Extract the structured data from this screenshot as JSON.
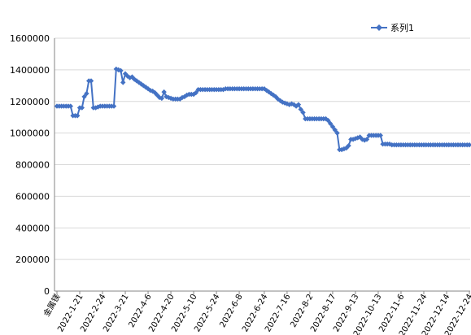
{
  "chart_data": {
    "type": "line",
    "title": "",
    "xlabel": "",
    "ylabel": "",
    "ylim": [
      0,
      1600000
    ],
    "yticks": [
      0,
      200000,
      400000,
      600000,
      800000,
      1000000,
      1200000,
      1400000,
      1600000
    ],
    "ytick_labels": [
      "0",
      "200000",
      "400000",
      "600000",
      "800000",
      "1000000",
      "1200000",
      "1400000",
      "1600000"
    ],
    "x_tick_labels": [
      "金属镁",
      "2022-1-21",
      "2022-2-24",
      "2022-3-21",
      "2022-4-6",
      "2022-4-20",
      "2022-5-10",
      "2022-5-24",
      "2022-6-8",
      "2022-6-24",
      "2022-7-16",
      "2022-8-2",
      "2022-8-17",
      "2022-9-13",
      "2022-10-13",
      "2022-11-6",
      "2022-11-24",
      "2022-12-14",
      "2022-12-24"
    ],
    "grid": "horizontal",
    "legend_position": "top-right",
    "series": [
      {
        "name": "系列1",
        "color": "#4472C4",
        "marker": "diamond",
        "values": [
          1170000,
          1170000,
          1170000,
          1170000,
          1170000,
          1170000,
          1170000,
          1110000,
          1110000,
          1110000,
          1160000,
          1160000,
          1230000,
          1250000,
          1330000,
          1330000,
          1160000,
          1160000,
          1165000,
          1170000,
          1170000,
          1170000,
          1170000,
          1170000,
          1170000,
          1170000,
          1405000,
          1400000,
          1395000,
          1320000,
          1375000,
          1360000,
          1350000,
          1355000,
          1340000,
          1330000,
          1320000,
          1310000,
          1300000,
          1290000,
          1280000,
          1270000,
          1265000,
          1255000,
          1240000,
          1225000,
          1220000,
          1260000,
          1230000,
          1225000,
          1220000,
          1215000,
          1215000,
          1215000,
          1215000,
          1225000,
          1230000,
          1240000,
          1245000,
          1245000,
          1245000,
          1255000,
          1275000,
          1275000,
          1275000,
          1275000,
          1275000,
          1275000,
          1275000,
          1275000,
          1275000,
          1275000,
          1275000,
          1275000,
          1280000,
          1280000,
          1280000,
          1280000,
          1280000,
          1280000,
          1280000,
          1280000,
          1280000,
          1280000,
          1280000,
          1280000,
          1280000,
          1280000,
          1280000,
          1280000,
          1280000,
          1280000,
          1270000,
          1260000,
          1250000,
          1240000,
          1230000,
          1215000,
          1205000,
          1195000,
          1190000,
          1185000,
          1180000,
          1185000,
          1180000,
          1170000,
          1180000,
          1150000,
          1130000,
          1090000,
          1090000,
          1090000,
          1090000,
          1090000,
          1090000,
          1090000,
          1090000,
          1090000,
          1090000,
          1080000,
          1060000,
          1040000,
          1020000,
          1000000,
          895000,
          895000,
          900000,
          905000,
          920000,
          960000,
          960000,
          965000,
          970000,
          975000,
          960000,
          955000,
          960000,
          985000,
          985000,
          985000,
          985000,
          985000,
          985000,
          930000,
          930000,
          930000,
          930000,
          925000,
          925000,
          925000,
          925000,
          925000,
          925000,
          925000,
          925000,
          925000,
          925000,
          925000,
          925000,
          925000,
          925000,
          925000,
          925000,
          925000,
          925000,
          925000,
          925000,
          925000,
          925000,
          925000,
          925000,
          925000,
          925000,
          925000,
          925000,
          925000,
          925000,
          925000,
          925000,
          925000,
          925000,
          925000
        ]
      }
    ]
  }
}
